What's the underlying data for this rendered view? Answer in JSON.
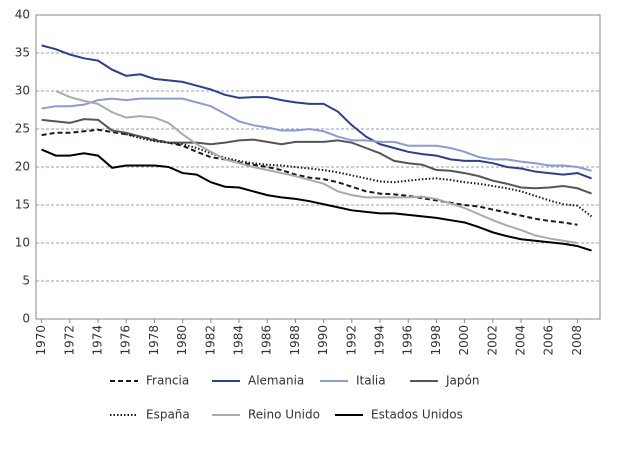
{
  "chart_data": {
    "type": "line",
    "x": [
      1970,
      1971,
      1972,
      1973,
      1974,
      1975,
      1976,
      1977,
      1978,
      1979,
      1980,
      1981,
      1982,
      1983,
      1984,
      1985,
      1986,
      1987,
      1988,
      1989,
      1990,
      1991,
      1992,
      1993,
      1994,
      1995,
      1996,
      1997,
      1998,
      1999,
      2000,
      2001,
      2002,
      2003,
      2004,
      2005,
      2006,
      2007,
      2008,
      2009
    ],
    "xlim": [
      1969.6,
      2009.6
    ],
    "xticks": [
      1970,
      1972,
      1974,
      1976,
      1978,
      1980,
      1982,
      1984,
      1986,
      1988,
      1990,
      1992,
      1994,
      1996,
      1998,
      2000,
      2002,
      2004,
      2006,
      2008
    ],
    "ylim": [
      0,
      40
    ],
    "yticks": [
      0,
      5,
      10,
      15,
      20,
      25,
      30,
      35,
      40
    ],
    "grid": true,
    "legend": "bottom",
    "series": [
      {
        "name": "Francia",
        "color": "#1a1a1a",
        "dash": "dashed",
        "values": [
          24.2,
          24.5,
          24.5,
          24.7,
          24.9,
          24.6,
          24.3,
          24,
          23.6,
          23.2,
          22.8,
          22,
          21.3,
          21,
          20.6,
          20.3,
          20,
          19.6,
          19,
          18.6,
          18.4,
          18,
          17.4,
          16.8,
          16.5,
          16.4,
          16.2,
          15.9,
          15.6,
          15.3,
          15,
          14.8,
          14.4,
          14,
          13.6,
          13.2,
          12.9,
          12.7,
          12.4,
          null
        ]
      },
      {
        "name": "Alemania",
        "color": "#2e3f8f",
        "dash": "solid",
        "values": [
          36,
          35.5,
          34.8,
          34.3,
          34,
          32.8,
          32,
          32.2,
          31.6,
          31.4,
          31.2,
          30.7,
          30.2,
          29.5,
          29.1,
          29.2,
          29.2,
          28.8,
          28.5,
          28.3,
          28.3,
          27.3,
          25.5,
          24,
          23,
          22.5,
          22,
          21.7,
          21.5,
          21,
          20.8,
          20.8,
          20.5,
          20,
          19.8,
          19.4,
          19.2,
          19,
          19.2,
          18.5
        ]
      },
      {
        "name": "Italia",
        "color": "#8e9bd3",
        "dash": "solid",
        "values": [
          27.7,
          28,
          28,
          28.2,
          28.8,
          29,
          28.8,
          29,
          29,
          29,
          29,
          28.5,
          28,
          27,
          26,
          25.5,
          25.2,
          24.8,
          24.8,
          25,
          24.7,
          24,
          23.5,
          23.5,
          23.3,
          23.3,
          22.8,
          22.8,
          22.8,
          22.5,
          22,
          21.3,
          21,
          21,
          20.7,
          20.5,
          20.2,
          20.2,
          20,
          19.5
        ]
      },
      {
        "name": "Japón",
        "color": "#555555",
        "dash": "solid",
        "values": [
          26.2,
          26,
          25.8,
          26.3,
          26.2,
          24.8,
          24.5,
          24,
          23.5,
          23.2,
          23.2,
          23.2,
          23,
          23.2,
          23.5,
          23.6,
          23.3,
          23,
          23.3,
          23.3,
          23.3,
          23.5,
          23.2,
          22.5,
          21.8,
          20.8,
          20.5,
          20.3,
          19.6,
          19.5,
          19.2,
          18.8,
          18.2,
          17.8,
          17.3,
          17.2,
          17.3,
          17.5,
          17.2,
          16.5
        ]
      },
      {
        "name": "España",
        "color": "#1a1a1a",
        "dash": "dotted",
        "values": [
          null,
          null,
          null,
          null,
          null,
          null,
          24.3,
          23.8,
          23.4,
          23.2,
          23,
          22.5,
          21.8,
          21.2,
          20.8,
          20.5,
          20.3,
          20.2,
          20,
          19.8,
          19.6,
          19.3,
          18.9,
          18.5,
          18.1,
          18,
          18.2,
          18.4,
          18.5,
          18.3,
          18,
          17.8,
          17.5,
          17.2,
          16.8,
          16.2,
          15.6,
          15.1,
          14.9,
          13.5
        ]
      },
      {
        "name": "Reino Unido",
        "color": "#aaaaaa",
        "dash": "solid",
        "values": [
          null,
          30,
          29.2,
          28.7,
          28.3,
          27.2,
          26.5,
          26.7,
          26.5,
          25.8,
          24.3,
          23,
          22,
          21,
          20.5,
          20,
          19.6,
          19.2,
          18.8,
          18.3,
          17.8,
          16.8,
          16.3,
          16,
          16,
          16,
          16,
          16.1,
          15.8,
          15.2,
          14.6,
          13.8,
          13,
          12.3,
          11.7,
          11,
          10.6,
          10.3,
          10,
          null
        ]
      },
      {
        "name": "Estados Unidos",
        "color": "#000000",
        "dash": "solid",
        "values": [
          22.3,
          21.5,
          21.5,
          21.8,
          21.5,
          19.9,
          20.2,
          20.2,
          20.2,
          20,
          19.2,
          19,
          18,
          17.4,
          17.3,
          16.8,
          16.3,
          16,
          15.8,
          15.5,
          15.1,
          14.7,
          14.3,
          14.1,
          13.9,
          13.9,
          13.7,
          13.5,
          13.3,
          13,
          12.7,
          12.1,
          11.4,
          10.9,
          10.5,
          10.3,
          10.1,
          9.9,
          9.6,
          9
        ]
      }
    ]
  }
}
